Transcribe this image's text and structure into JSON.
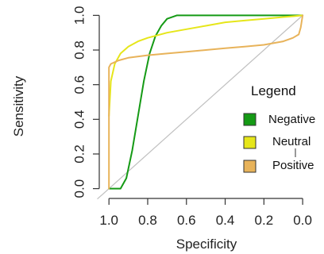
{
  "chart_data": {
    "type": "line",
    "xlabel": "Specificity",
    "ylabel": "Sensitivity",
    "xlim": [
      1.05,
      -0.02
    ],
    "ylim": [
      -0.02,
      1.02
    ],
    "x_reversed": true,
    "x_ticks": [
      1.0,
      0.8,
      0.6,
      0.4,
      0.2,
      0.0
    ],
    "x_tick_labels": [
      "1.0",
      "0.8",
      "0.6",
      "0.4",
      "0.2",
      "0.0"
    ],
    "y_ticks": [
      0.0,
      0.2,
      0.4,
      0.6,
      0.8,
      1.0
    ],
    "y_tick_labels": [
      "0.0",
      "0.2",
      "0.4",
      "0.6",
      "0.8",
      "1.0"
    ],
    "grid": false,
    "reference_line": {
      "from": [
        1.0,
        0.0
      ],
      "to": [
        0.0,
        1.0
      ],
      "color": "#c0c0c0"
    },
    "legend": {
      "title": "Legend",
      "placement": "right",
      "entries": [
        {
          "label": "Negative",
          "color": "#159a15"
        },
        {
          "label": "Neutral",
          "color": "#e6e61a"
        },
        {
          "label": "Positive",
          "color": "#e8b35a"
        }
      ]
    },
    "series": [
      {
        "name": "Negative",
        "color": "#159a15",
        "x": [
          1.0,
          0.94,
          0.91,
          0.88,
          0.85,
          0.82,
          0.79,
          0.76,
          0.73,
          0.7,
          0.65,
          0.6,
          0.5,
          0.4,
          0.3,
          0.2,
          0.1,
          0.0
        ],
        "y": [
          0.0,
          0.0,
          0.06,
          0.22,
          0.42,
          0.62,
          0.78,
          0.88,
          0.94,
          0.98,
          1.0,
          1.0,
          1.0,
          1.0,
          1.0,
          1.0,
          1.0,
          1.0
        ]
      },
      {
        "name": "Neutral",
        "color": "#e6e61a",
        "x": [
          1.0,
          0.99,
          0.97,
          0.94,
          0.9,
          0.85,
          0.8,
          0.7,
          0.6,
          0.5,
          0.4,
          0.3,
          0.2,
          0.1,
          0.05,
          0.0
        ],
        "y": [
          0.42,
          0.62,
          0.72,
          0.78,
          0.82,
          0.85,
          0.87,
          0.9,
          0.92,
          0.94,
          0.96,
          0.97,
          0.98,
          0.99,
          0.995,
          1.0
        ]
      },
      {
        "name": "Positive",
        "color": "#e8b35a",
        "x": [
          1.0,
          1.0,
          0.99,
          0.97,
          0.95,
          0.9,
          0.8,
          0.7,
          0.6,
          0.5,
          0.4,
          0.3,
          0.2,
          0.1,
          0.05,
          0.02,
          0.01,
          0.0
        ],
        "y": [
          0.0,
          0.7,
          0.72,
          0.73,
          0.74,
          0.755,
          0.77,
          0.78,
          0.79,
          0.8,
          0.81,
          0.82,
          0.83,
          0.85,
          0.87,
          0.89,
          0.93,
          1.0
        ]
      }
    ]
  }
}
